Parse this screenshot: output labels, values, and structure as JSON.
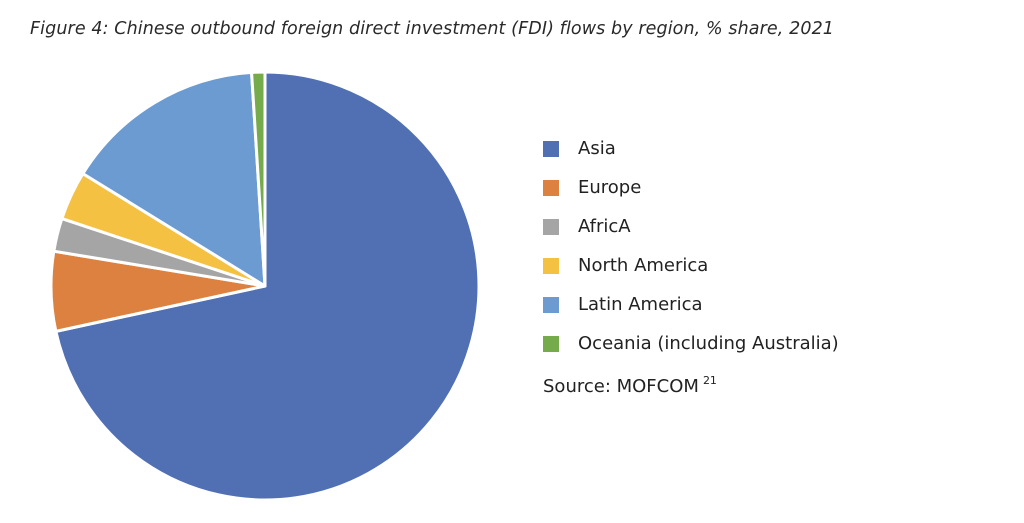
{
  "figure": {
    "title": "Figure 4: Chinese outbound foreign direct investment (FDI) flows by region, % share, 2021"
  },
  "chart_data": {
    "type": "pie",
    "title": "Figure 4: Chinese outbound foreign direct investment (FDI) flows by region, % share, 2021",
    "legend_position": "right",
    "slices": [
      {
        "label": "Asia",
        "value": 71.6,
        "color": "#5170b3"
      },
      {
        "label": "Europe",
        "value": 6.0,
        "color": "#dd8141"
      },
      {
        "label": "AfricA",
        "value": 2.5,
        "color": "#a5a5a5"
      },
      {
        "label": "North America",
        "value": 3.7,
        "color": "#f4c143"
      },
      {
        "label": "Latin America",
        "value": 15.2,
        "color": "#6b9bd1"
      },
      {
        "label": "Oceania (including Australia)",
        "value": 1.0,
        "color": "#76ab4c"
      }
    ]
  },
  "source": {
    "text": "Source: MOFCOM",
    "ref": "21"
  }
}
